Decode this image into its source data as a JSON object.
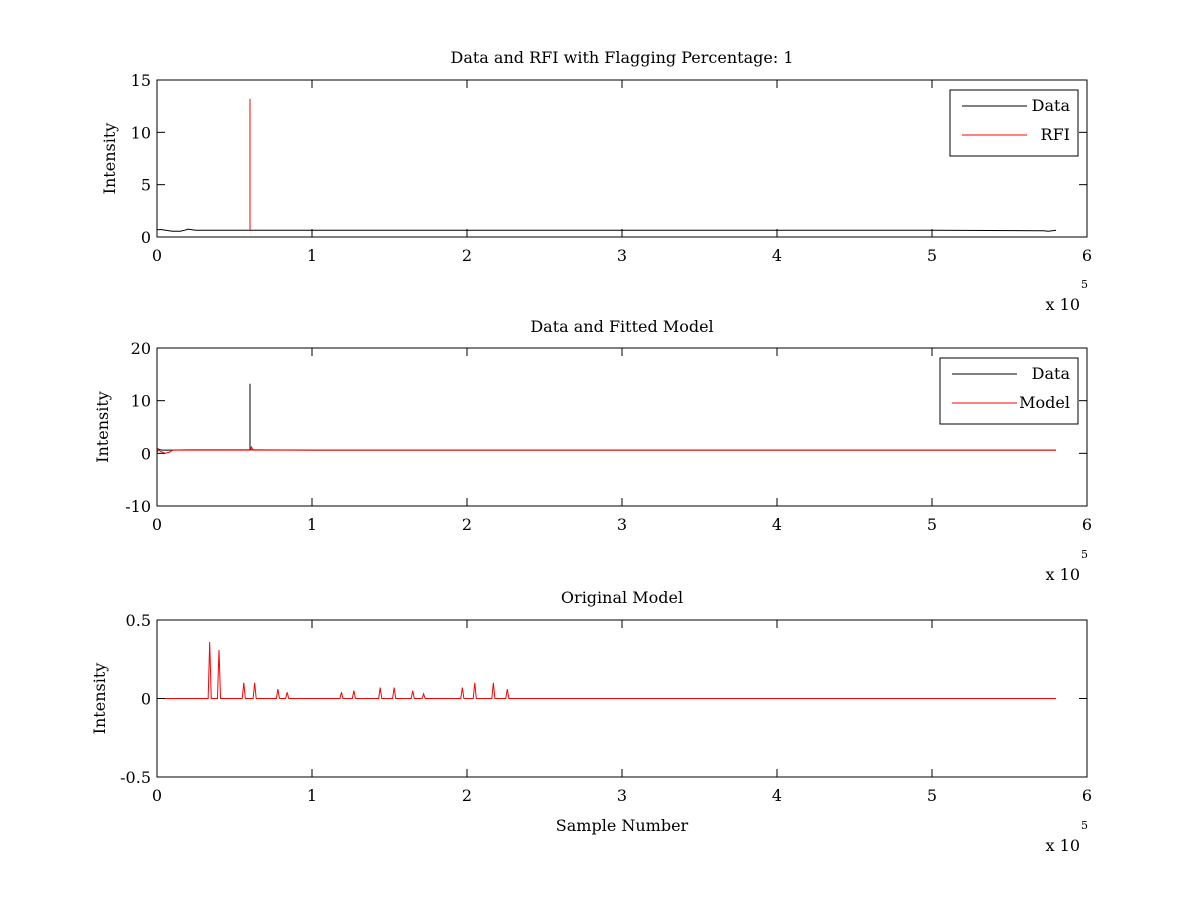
{
  "chart_data": [
    {
      "type": "line",
      "title": "Data and RFI with Flagging Percentage: 1",
      "xlabel": "",
      "ylabel": "Intensity",
      "xlim": [
        0,
        6
      ],
      "ylim": [
        0,
        15
      ],
      "xticks": [
        "0",
        "1",
        "2",
        "3",
        "4",
        "5",
        "6"
      ],
      "yticks": [
        "0",
        "5",
        "10",
        "15"
      ],
      "x_multiplier": "x 10",
      "x_multiplier_exp": "5",
      "legend_position": "top-right",
      "series": [
        {
          "name": "Data",
          "color": "#000000",
          "x": [
            0,
            0.03,
            0.1,
            0.15,
            0.18,
            0.2,
            0.25,
            0.6,
            0.61,
            1,
            2,
            3,
            4,
            5,
            5.72,
            5.75,
            5.8
          ],
          "y": [
            0.7,
            0.7,
            0.55,
            0.55,
            0.65,
            0.75,
            0.65,
            0.65,
            0.65,
            0.65,
            0.65,
            0.65,
            0.65,
            0.65,
            0.6,
            0.55,
            0.65
          ]
        },
        {
          "name": "RFI",
          "color": "#ff0000",
          "x": [
            0.6,
            0.6,
            0.6
          ],
          "y": [
            0.65,
            13.2,
            0.65
          ]
        }
      ]
    },
    {
      "type": "line",
      "title": "Data and Fitted Model",
      "xlabel": "",
      "ylabel": "Intensity",
      "xlim": [
        0,
        6
      ],
      "ylim": [
        -10,
        20
      ],
      "xticks": [
        "0",
        "1",
        "2",
        "3",
        "4",
        "5",
        "6"
      ],
      "yticks": [
        "-10",
        "0",
        "10",
        "20"
      ],
      "x_multiplier": "x 10",
      "x_multiplier_exp": "5",
      "legend_position": "top-right",
      "series": [
        {
          "name": "Data",
          "color": "#000000",
          "x": [
            0,
            0.03,
            0.08,
            0.2,
            0.6,
            0.6,
            0.6,
            1,
            2,
            3,
            4,
            5,
            5.8
          ],
          "y": [
            0.9,
            0.6,
            0.6,
            0.65,
            0.65,
            13.2,
            0.65,
            0.6,
            0.6,
            0.6,
            0.6,
            0.6,
            0.6
          ]
        },
        {
          "name": "Model",
          "color": "#ff0000",
          "x": [
            0,
            0.01,
            0.02,
            0.05,
            0.08,
            0.1,
            0.6,
            0.61,
            0.62,
            1,
            2,
            3,
            4,
            5,
            5.8
          ],
          "y": [
            0.2,
            0.7,
            0.4,
            0.0,
            0.2,
            0.6,
            0.6,
            1.2,
            0.6,
            0.6,
            0.6,
            0.6,
            0.6,
            0.6,
            0.6
          ]
        }
      ]
    },
    {
      "type": "line",
      "title": "Original Model",
      "xlabel": "Sample Number",
      "ylabel": "Intensity",
      "xlim": [
        0,
        6
      ],
      "ylim": [
        -0.5,
        0.5
      ],
      "xticks": [
        "0",
        "1",
        "2",
        "3",
        "4",
        "5",
        "6"
      ],
      "yticks": [
        "-0.5",
        "0",
        "0.5"
      ],
      "x_multiplier": "x 10",
      "x_multiplier_exp": "5",
      "series": [
        {
          "color": "#ff0000",
          "x": [
            0,
            0.33,
            0.34,
            0.35,
            0.39,
            0.4,
            0.41,
            0.55,
            0.56,
            0.57,
            0.62,
            0.63,
            0.64,
            0.77,
            0.78,
            0.79,
            0.83,
            0.84,
            0.85,
            1.18,
            1.19,
            1.2,
            1.26,
            1.27,
            1.28,
            1.43,
            1.44,
            1.45,
            1.52,
            1.53,
            1.54,
            1.64,
            1.65,
            1.66,
            1.71,
            1.72,
            1.73,
            1.96,
            1.97,
            1.98,
            2.04,
            2.05,
            2.06,
            2.16,
            2.17,
            2.18,
            2.25,
            2.26,
            2.27,
            5.8
          ],
          "y": [
            0,
            0,
            0.36,
            0,
            0,
            0.31,
            0,
            0,
            0.1,
            0,
            0,
            0.1,
            0,
            0,
            0.06,
            0,
            0,
            0.04,
            0,
            0,
            0.04,
            0,
            0,
            0.05,
            0,
            0,
            0.07,
            0,
            0,
            0.07,
            0,
            0,
            0.05,
            0,
            0,
            0.03,
            0,
            0,
            0.07,
            0,
            0,
            0.1,
            0,
            0,
            0.1,
            0,
            0,
            0.06,
            0,
            0
          ]
        }
      ]
    }
  ]
}
